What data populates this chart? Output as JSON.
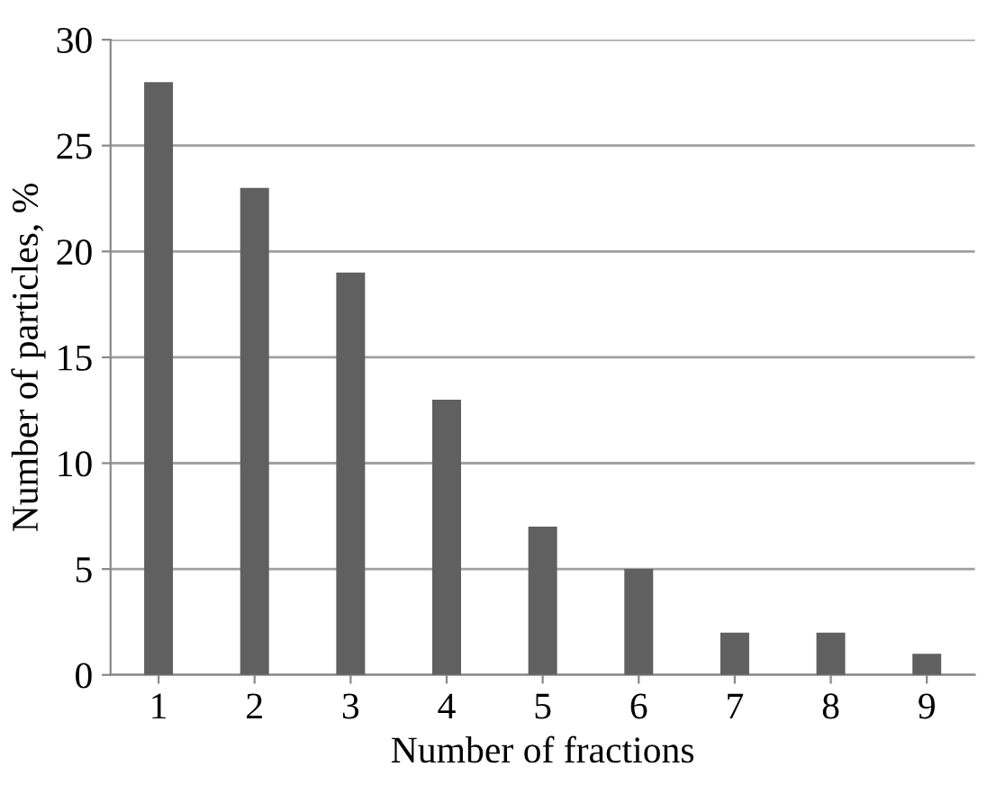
{
  "chart_data": {
    "type": "bar",
    "xlabel": "Number of fractions",
    "ylabel": "Number of particles, %",
    "categories": [
      "1",
      "2",
      "3",
      "4",
      "5",
      "6",
      "7",
      "8",
      "9"
    ],
    "values": [
      28,
      23,
      19,
      13,
      7,
      5,
      2,
      2,
      1
    ],
    "color": "#606060",
    "ylim": [
      0,
      30
    ],
    "yticks": [
      0,
      5,
      10,
      15,
      20,
      25,
      30
    ],
    "grid": "y"
  }
}
